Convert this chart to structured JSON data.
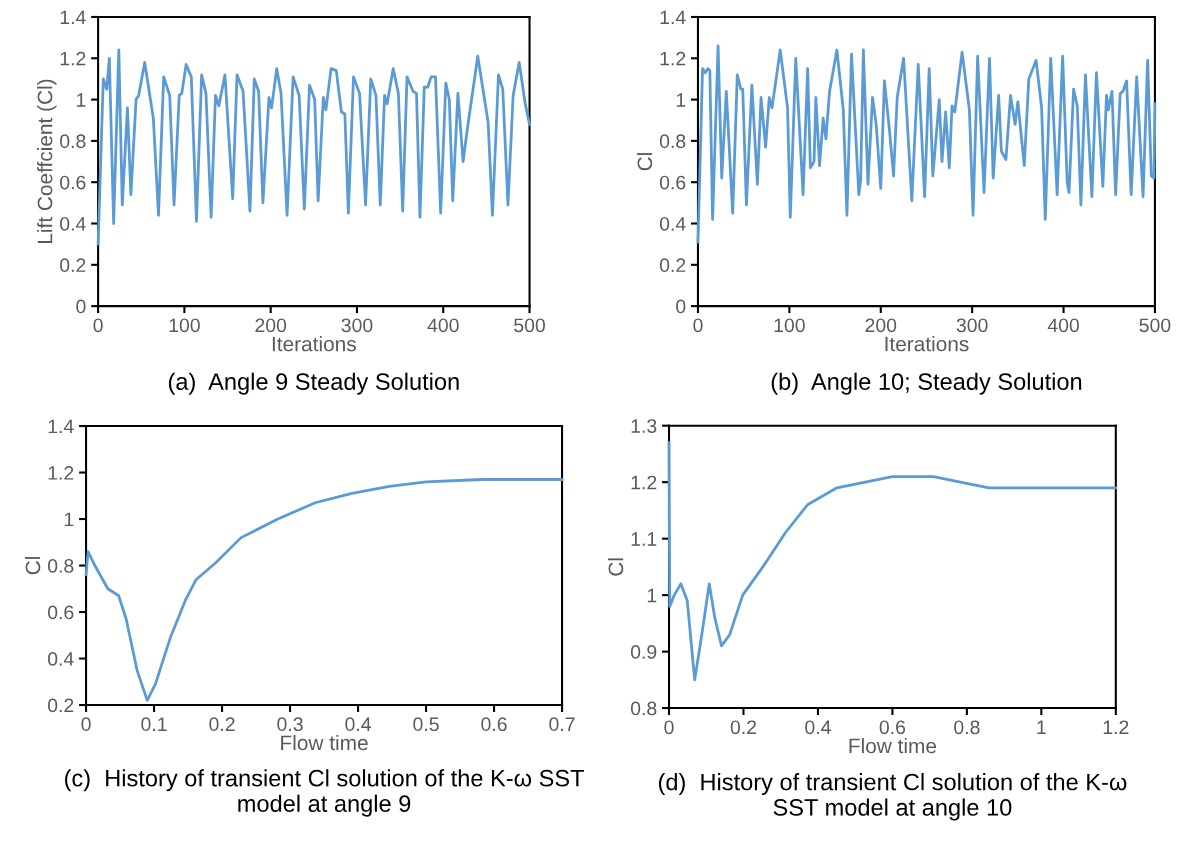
{
  "chart_data": [
    {
      "type": "line",
      "title": "(a)  Angle 9 Steady Solution",
      "xlabel": "Iterations",
      "ylabel": "Lift Coeffcient (Cl)",
      "xlim": [
        0,
        500
      ],
      "ylim": [
        0,
        1.4
      ],
      "xticks": [
        0,
        100,
        200,
        300,
        400,
        500
      ],
      "yticks": [
        0,
        0.2,
        0.4,
        0.6,
        0.8,
        1,
        1.2,
        1.4
      ],
      "marker": "none",
      "line_style": "solid",
      "series": [
        {
          "color": "#5b9bd5",
          "x": [
            0,
            6,
            10,
            13,
            18,
            24,
            28,
            34,
            38,
            44,
            47,
            54,
            64,
            70,
            76,
            83,
            88,
            94,
            97,
            102,
            108,
            114,
            120,
            125,
            131,
            136,
            140,
            147,
            156,
            161,
            168,
            176,
            181,
            186,
            191,
            198,
            201,
            207,
            212,
            219,
            226,
            233,
            239,
            245,
            251,
            255,
            261,
            264,
            270,
            276,
            282,
            286,
            290,
            296,
            303,
            310,
            316,
            322,
            327,
            332,
            335,
            342,
            348,
            353,
            358,
            365,
            369,
            373,
            378,
            382,
            386,
            391,
            397,
            403,
            407,
            411,
            417,
            423,
            428,
            440,
            452,
            457,
            464,
            469,
            475,
            481,
            488,
            495,
            500
          ],
          "values": [
            0.3,
            1.1,
            1.05,
            1.2,
            0.4,
            1.24,
            0.49,
            0.96,
            0.54,
            1.0,
            1.02,
            1.18,
            0.91,
            0.44,
            1.11,
            1.02,
            0.49,
            1.02,
            1.03,
            1.17,
            1.11,
            0.41,
            1.12,
            1.03,
            0.43,
            1.02,
            0.97,
            1.12,
            0.52,
            1.12,
            1.04,
            0.46,
            1.1,
            1.04,
            0.5,
            1.01,
            0.96,
            1.15,
            1.03,
            0.44,
            1.11,
            1.02,
            0.47,
            1.07,
            1.0,
            0.51,
            1.01,
            0.95,
            1.15,
            1.14,
            0.94,
            0.93,
            0.45,
            1.11,
            1.03,
            0.49,
            1.1,
            1.02,
            0.49,
            1.02,
            0.98,
            1.15,
            1.03,
            0.46,
            1.11,
            1.04,
            1.03,
            0.43,
            1.06,
            1.06,
            1.11,
            1.11,
            0.45,
            1.08,
            1.0,
            0.51,
            1.03,
            0.7,
            0.86,
            1.21,
            0.89,
            0.44,
            1.12,
            1.05,
            0.49,
            1.02,
            1.18,
            0.98,
            0.88
          ]
        }
      ]
    },
    {
      "type": "line",
      "title": "(b)  Angle 10; Steady Solution",
      "xlabel": "Iterations",
      "ylabel": "Cl",
      "xlim": [
        0,
        500
      ],
      "ylim": [
        0,
        1.4
      ],
      "xticks": [
        0,
        100,
        200,
        300,
        400,
        500
      ],
      "yticks": [
        0,
        0.2,
        0.4,
        0.6,
        0.8,
        1,
        1.2,
        1.4
      ],
      "marker": "none",
      "line_style": "solid",
      "series": [
        {
          "color": "#5b9bd5",
          "x": [
            0,
            5,
            8,
            11,
            13,
            16,
            22,
            26,
            31,
            38,
            43,
            47,
            49,
            53,
            59,
            65,
            69,
            74,
            78,
            81,
            90,
            98,
            101,
            107,
            115,
            120,
            123,
            127,
            129,
            133,
            137,
            140,
            144,
            152,
            159,
            163,
            168,
            176,
            178,
            181,
            186,
            191,
            195,
            200,
            204,
            210,
            214,
            218,
            225,
            234,
            241,
            248,
            253,
            257,
            264,
            267,
            271,
            275,
            278,
            281,
            289,
            297,
            301,
            306,
            313,
            319,
            323,
            329,
            332,
            337,
            342,
            347,
            350,
            357,
            362,
            370,
            376,
            380,
            386,
            393,
            399,
            404,
            406,
            411,
            415,
            419,
            424,
            431,
            436,
            443,
            447,
            449,
            453,
            457,
            462,
            465,
            469,
            474,
            480,
            487,
            492,
            496,
            499,
            500
          ],
          "values": [
            0.31,
            1.15,
            1.13,
            1.15,
            1.14,
            0.42,
            1.26,
            0.62,
            1.04,
            0.45,
            1.12,
            1.05,
            1.05,
            0.49,
            1.07,
            0.59,
            1.01,
            0.77,
            1.01,
            0.96,
            1.24,
            0.96,
            0.43,
            1.2,
            0.54,
            1.15,
            0.67,
            0.7,
            1.01,
            0.68,
            0.91,
            0.81,
            1.04,
            1.24,
            0.95,
            0.44,
            1.22,
            0.54,
            0.61,
            1.24,
            0.59,
            1.01,
            0.88,
            0.57,
            1.09,
            0.83,
            0.63,
            1.01,
            1.2,
            0.51,
            1.17,
            0.53,
            1.15,
            0.63,
            1.0,
            0.7,
            0.94,
            0.67,
            0.97,
            0.94,
            1.23,
            0.95,
            0.44,
            1.21,
            0.55,
            1.2,
            0.62,
            1.02,
            0.75,
            0.71,
            1.02,
            0.88,
            0.99,
            0.68,
            1.1,
            1.19,
            0.96,
            0.42,
            1.2,
            0.54,
            1.21,
            0.6,
            0.55,
            1.05,
            0.97,
            0.49,
            1.12,
            0.53,
            1.13,
            0.58,
            1.02,
            0.95,
            1.04,
            0.54,
            1.03,
            1.04,
            1.09,
            0.54,
            1.11,
            0.53,
            1.19,
            0.63,
            0.62,
            0.98
          ]
        }
      ]
    },
    {
      "type": "line",
      "title": "(c)  History of transient Cl solution of the K-ω SST model at angle 9",
      "xlabel": "Flow time",
      "ylabel": "Cl",
      "xlim": [
        0,
        0.7
      ],
      "ylim": [
        0.2,
        1.4
      ],
      "xticks": [
        0,
        0.1,
        0.2,
        0.3,
        0.4,
        0.5,
        0.6,
        0.7
      ],
      "yticks": [
        0.2,
        0.4,
        0.6,
        0.8,
        1,
        1.2,
        1.4
      ],
      "marker": "none",
      "line_style": "solid",
      "series": [
        {
          "color": "#5b9bd5",
          "x": [
            0,
            0.003,
            0.013,
            0.032,
            0.048,
            0.059,
            0.075,
            0.09,
            0.102,
            0.124,
            0.146,
            0.162,
            0.19,
            0.228,
            0.282,
            0.337,
            0.391,
            0.446,
            0.5,
            0.582,
            0.7
          ],
          "values": [
            0.76,
            0.86,
            0.8,
            0.7,
            0.67,
            0.57,
            0.35,
            0.22,
            0.29,
            0.49,
            0.65,
            0.74,
            0.81,
            0.92,
            1.0,
            1.07,
            1.11,
            1.14,
            1.16,
            1.17,
            1.17
          ]
        }
      ]
    },
    {
      "type": "line",
      "title": "(d)  History of transient Cl solution of the K-ω SST model at angle 10",
      "xlabel": "Flow time",
      "ylabel": "Cl",
      "xlim": [
        0,
        1.2
      ],
      "ylim": [
        0.8,
        1.3
      ],
      "xticks": [
        0,
        0.2,
        0.4,
        0.6,
        0.8,
        1,
        1.2
      ],
      "yticks": [
        0.8,
        0.9,
        1,
        1.1,
        1.2,
        1.3
      ],
      "marker": "none",
      "line_style": "solid",
      "series": [
        {
          "color": "#5b9bd5",
          "x": [
            0,
            0.002,
            0.014,
            0.032,
            0.049,
            0.069,
            0.088,
            0.108,
            0.123,
            0.141,
            0.163,
            0.198,
            0.252,
            0.312,
            0.372,
            0.451,
            0.6,
            0.71,
            0.859,
            1.008,
            1.2
          ],
          "values": [
            1.27,
            0.98,
            1.0,
            1.02,
            0.99,
            0.85,
            0.93,
            1.02,
            0.96,
            0.91,
            0.93,
            1.0,
            1.05,
            1.11,
            1.16,
            1.19,
            1.21,
            1.21,
            1.19,
            1.19,
            1.19
          ]
        }
      ]
    }
  ]
}
